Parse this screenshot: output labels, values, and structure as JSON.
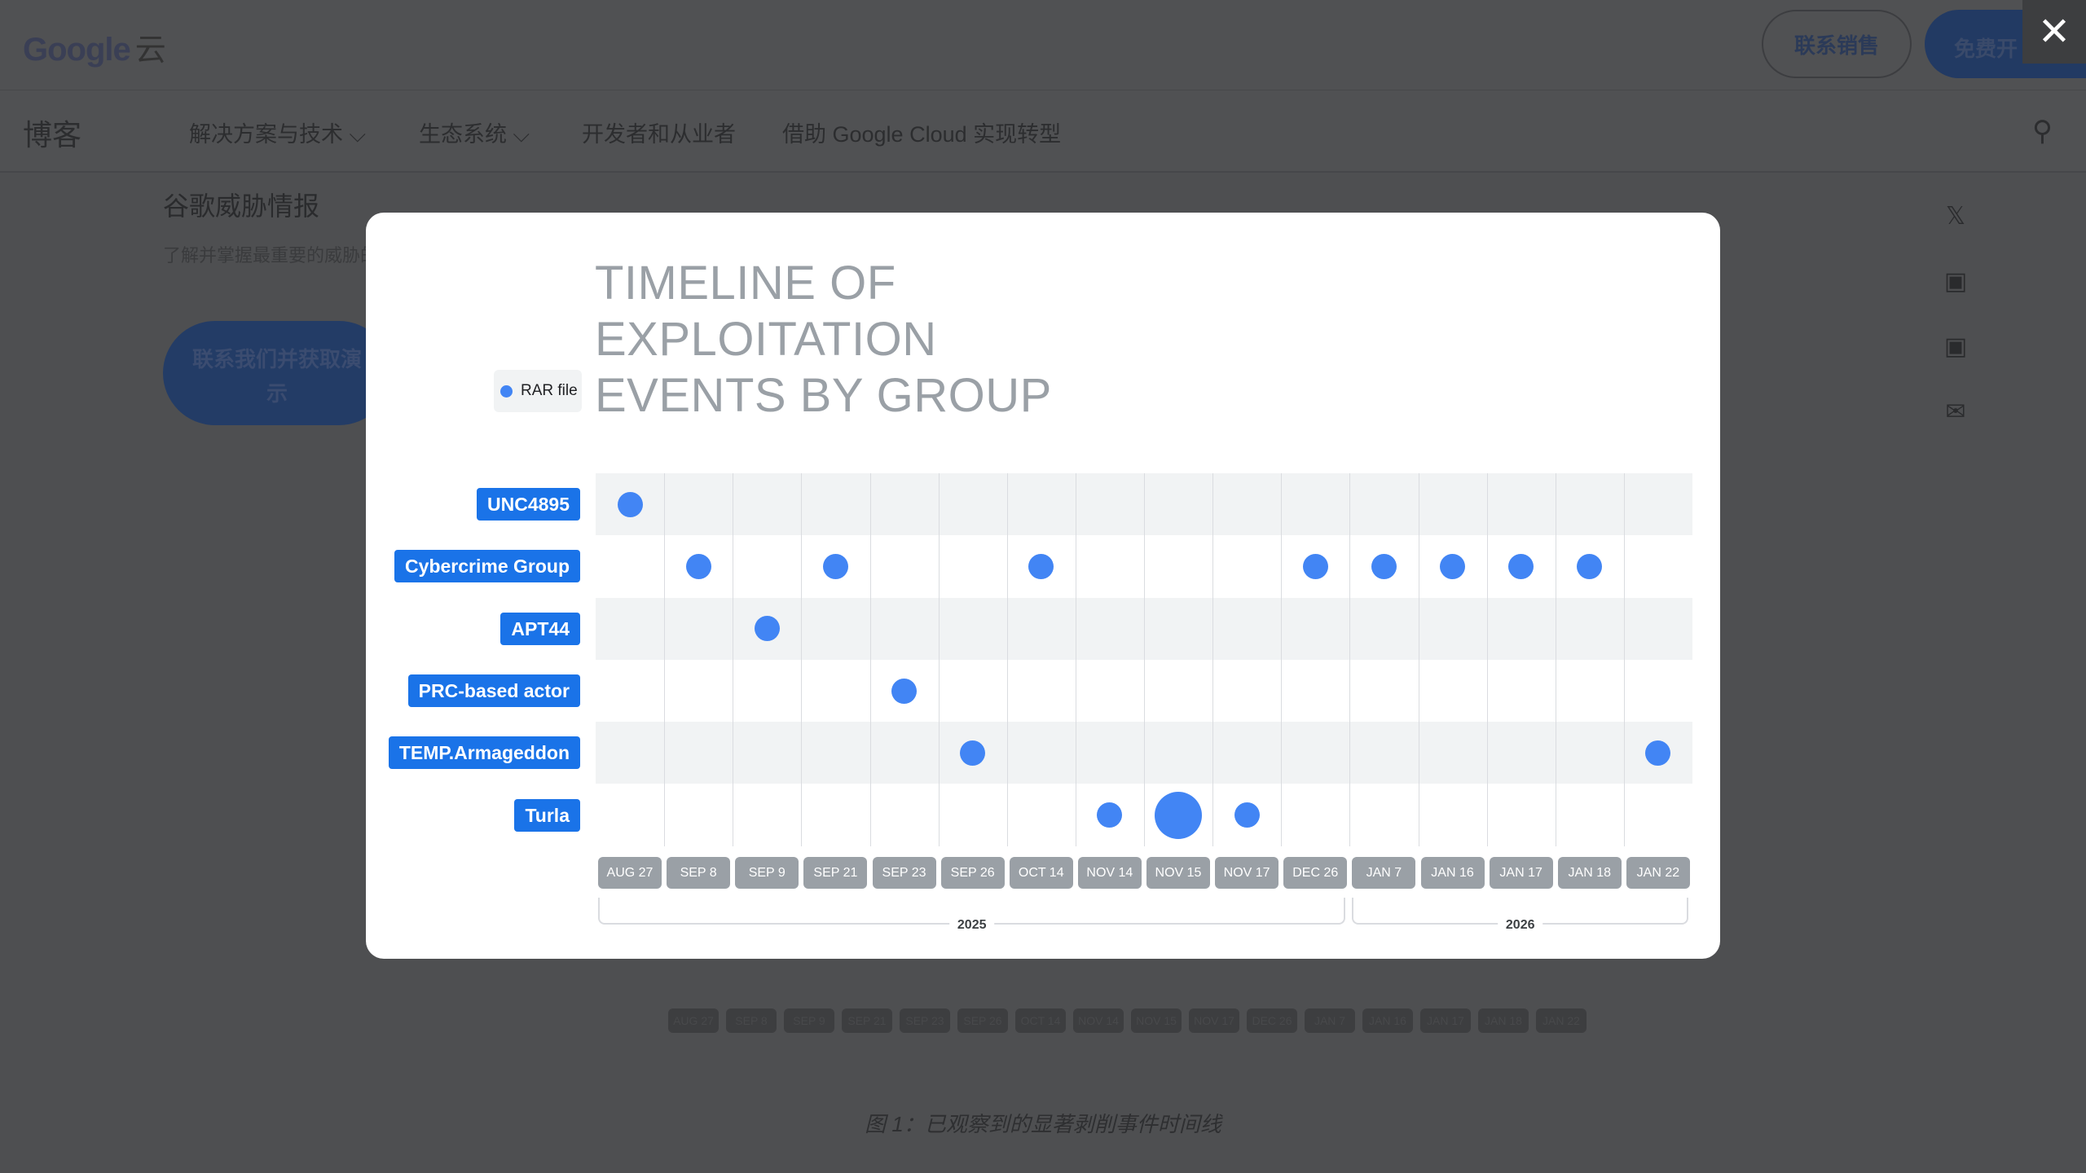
{
  "header": {
    "logo": "Google",
    "logo_suffix": "云",
    "contact_sales": "联系销售",
    "free_trial": "免费开",
    "close_icon": "close-icon"
  },
  "nav": {
    "blog": "博客",
    "items": [
      "解决方案与技术 ⌵",
      "生态系统 ⌵",
      "开发者和从业者",
      "借助 Google Cloud 实现转型"
    ]
  },
  "sidebar": {
    "title": "谷歌威胁情报",
    "desc": "了解并掌握最重要的威胁的背景信息。",
    "cta": "联系我们并获取演示"
  },
  "caption": "图 1：已观察到的显著剥削事件时间线",
  "modal": {
    "title_lines": [
      "TIMELINE OF",
      "EXPLOITATION",
      "EVENTS BY GROUP"
    ],
    "legend": "RAR file",
    "accent": "#4285f4"
  },
  "chart_data": {
    "type": "scatter",
    "title": "TIMELINE OF EXPLOITATION EVENTS BY GROUP",
    "legend": [
      "RAR file"
    ],
    "categories": [
      "AUG 27",
      "SEP 8",
      "SEP 9",
      "SEP 21",
      "SEP 23",
      "SEP 26",
      "OCT 14",
      "NOV 14",
      "NOV 15",
      "NOV 17",
      "DEC 26",
      "JAN 7",
      "JAN 16",
      "JAN 17",
      "JAN 18",
      "JAN 22"
    ],
    "groups": [
      "UNC4895",
      "Cybercrime Group",
      "APT44",
      "PRC-based actor",
      "TEMP.Armageddon",
      "Turla"
    ],
    "years": [
      {
        "label": "2025",
        "from": "AUG 27",
        "to": "DEC 26"
      },
      {
        "label": "2026",
        "from": "JAN 7",
        "to": "JAN 22"
      }
    ],
    "events": [
      {
        "group": "UNC4895",
        "dates": [
          "AUG 27"
        ]
      },
      {
        "group": "Cybercrime Group",
        "dates": [
          "SEP 8",
          "SEP 21",
          "OCT 14",
          "DEC 26",
          "JAN 7",
          "JAN 16",
          "JAN 17",
          "JAN 18"
        ]
      },
      {
        "group": "APT44",
        "dates": [
          "SEP 9"
        ]
      },
      {
        "group": "PRC-based actor",
        "dates": [
          "SEP 23"
        ]
      },
      {
        "group": "TEMP.Armageddon",
        "dates": [
          "SEP 26",
          "JAN 22"
        ]
      },
      {
        "group": "Turla",
        "dates": [
          "NOV 14",
          "NOV 15",
          "NOV 17"
        ],
        "large": [
          "NOV 15"
        ]
      }
    ]
  }
}
